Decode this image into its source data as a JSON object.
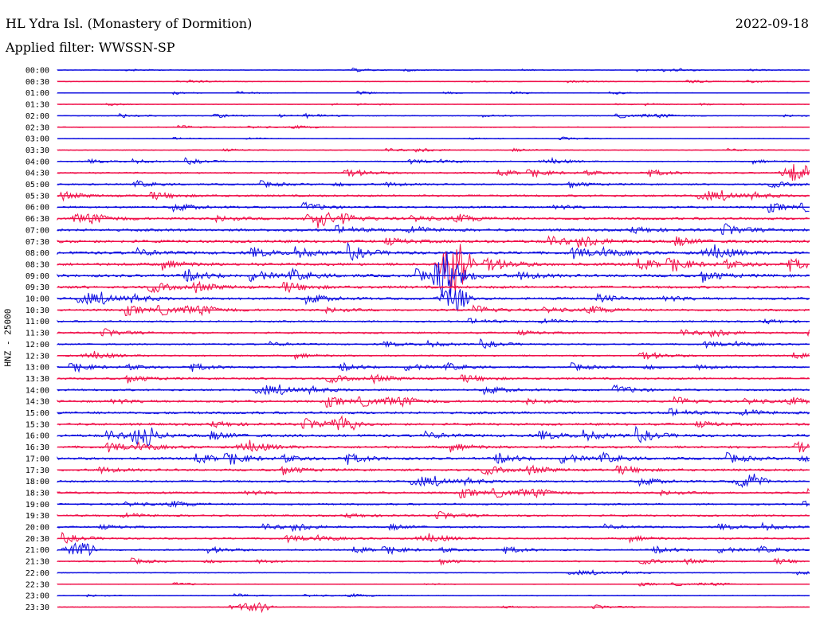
{
  "header": {
    "station": "HL Ydra Isl. (Monastery of Dormition)",
    "date": "2022-09-18",
    "filter": "Applied filter: WWSSN-SP"
  },
  "chart_data": {
    "type": "line",
    "ylabel": "HNZ - 25000",
    "colors": [
      "#1010e0",
      "#f0104a"
    ],
    "rows": [
      {
        "label": "00:00",
        "color": "#1010e0",
        "amplitude": 0.15
      },
      {
        "label": "00:30",
        "color": "#f0104a",
        "amplitude": 0.15
      },
      {
        "label": "01:00",
        "color": "#1010e0",
        "amplitude": 0.15
      },
      {
        "label": "01:30",
        "color": "#f0104a",
        "amplitude": 0.1
      },
      {
        "label": "02:00",
        "color": "#1010e0",
        "amplitude": 0.2
      },
      {
        "label": "02:30",
        "color": "#f0104a",
        "amplitude": 0.2
      },
      {
        "label": "03:00",
        "color": "#1010e0",
        "amplitude": 0.15
      },
      {
        "label": "03:30",
        "color": "#f0104a",
        "amplitude": 0.2
      },
      {
        "label": "04:00",
        "color": "#1010e0",
        "amplitude": 0.25
      },
      {
        "label": "04:30",
        "color": "#f0104a",
        "amplitude": 0.35
      },
      {
        "label": "05:00",
        "color": "#1010e0",
        "amplitude": 0.35
      },
      {
        "label": "05:30",
        "color": "#f0104a",
        "amplitude": 0.45
      },
      {
        "label": "06:00",
        "color": "#1010e0",
        "amplitude": 0.45
      },
      {
        "label": "06:30",
        "color": "#f0104a",
        "amplitude": 0.55
      },
      {
        "label": "07:00",
        "color": "#1010e0",
        "amplitude": 0.6
      },
      {
        "label": "07:30",
        "color": "#f0104a",
        "amplitude": 0.65
      },
      {
        "label": "08:00",
        "color": "#1010e0",
        "amplitude": 0.65
      },
      {
        "label": "08:30",
        "color": "#f0104a",
        "amplitude": 0.65
      },
      {
        "label": "09:00",
        "color": "#1010e0",
        "amplitude": 0.65
      },
      {
        "label": "09:30",
        "color": "#f0104a",
        "amplitude": 0.6
      },
      {
        "label": "10:00",
        "color": "#1010e0",
        "amplitude": 0.55
      },
      {
        "label": "10:30",
        "color": "#f0104a",
        "amplitude": 0.5
      },
      {
        "label": "11:00",
        "color": "#1010e0",
        "amplitude": 0.4
      },
      {
        "label": "11:30",
        "color": "#f0104a",
        "amplitude": 0.4
      },
      {
        "label": "12:00",
        "color": "#1010e0",
        "amplitude": 0.35
      },
      {
        "label": "12:30",
        "color": "#f0104a",
        "amplitude": 0.35
      },
      {
        "label": "13:00",
        "color": "#1010e0",
        "amplitude": 0.4
      },
      {
        "label": "13:30",
        "color": "#f0104a",
        "amplitude": 0.45
      },
      {
        "label": "14:00",
        "color": "#1010e0",
        "amplitude": 0.45
      },
      {
        "label": "14:30",
        "color": "#f0104a",
        "amplitude": 0.5
      },
      {
        "label": "15:00",
        "color": "#1010e0",
        "amplitude": 0.55
      },
      {
        "label": "15:30",
        "color": "#f0104a",
        "amplitude": 0.55
      },
      {
        "label": "16:00",
        "color": "#1010e0",
        "amplitude": 0.6
      },
      {
        "label": "16:30",
        "color": "#f0104a",
        "amplitude": 0.55
      },
      {
        "label": "17:00",
        "color": "#1010e0",
        "amplitude": 0.55
      },
      {
        "label": "17:30",
        "color": "#f0104a",
        "amplitude": 0.5
      },
      {
        "label": "18:00",
        "color": "#1010e0",
        "amplitude": 0.45
      },
      {
        "label": "18:30",
        "color": "#f0104a",
        "amplitude": 0.45
      },
      {
        "label": "19:00",
        "color": "#1010e0",
        "amplitude": 0.4
      },
      {
        "label": "19:30",
        "color": "#f0104a",
        "amplitude": 0.4
      },
      {
        "label": "20:00",
        "color": "#1010e0",
        "amplitude": 0.4
      },
      {
        "label": "20:30",
        "color": "#f0104a",
        "amplitude": 0.4
      },
      {
        "label": "21:00",
        "color": "#1010e0",
        "amplitude": 0.35
      },
      {
        "label": "21:30",
        "color": "#f0104a",
        "amplitude": 0.3
      },
      {
        "label": "22:00",
        "color": "#1010e0",
        "amplitude": 0.2
      },
      {
        "label": "22:30",
        "color": "#f0104a",
        "amplitude": 0.15
      },
      {
        "label": "23:00",
        "color": "#1010e0",
        "amplitude": 0.2
      },
      {
        "label": "23:30",
        "color": "#f0104a",
        "amplitude": 0.2
      }
    ],
    "events": [
      {
        "row": "08:30",
        "fraction": 0.53,
        "amplitude": 3.0
      },
      {
        "row": "09:00",
        "fraction": 0.52,
        "amplitude": 2.5
      },
      {
        "row": "10:00",
        "fraction": 0.53,
        "amplitude": 1.2
      },
      {
        "row": "04:30",
        "fraction": 0.985,
        "amplitude": 1.0
      },
      {
        "row": "06:30",
        "fraction": 0.35,
        "amplitude": 0.9
      },
      {
        "row": "15:30",
        "fraction": 0.38,
        "amplitude": 0.9
      },
      {
        "row": "16:00",
        "fraction": 0.12,
        "amplitude": 0.8
      },
      {
        "row": "18:00",
        "fraction": 0.92,
        "amplitude": 0.8
      },
      {
        "row": "21:00",
        "fraction": 0.03,
        "amplitude": 0.8
      },
      {
        "row": "23:30",
        "fraction": 0.26,
        "amplitude": 0.6
      }
    ]
  }
}
